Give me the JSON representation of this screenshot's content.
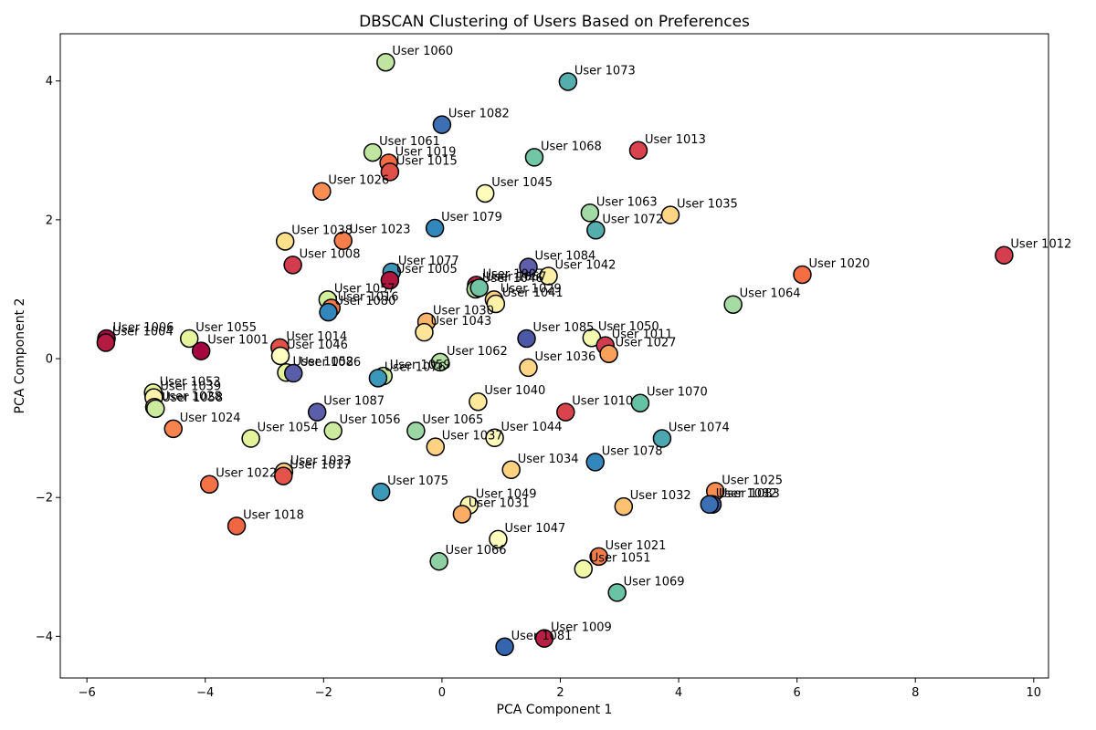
{
  "chart_data": {
    "type": "scatter",
    "title": "DBSCAN Clustering of Users Based on Preferences",
    "xlabel": "PCA Component 1",
    "ylabel": "PCA Component 2",
    "xlim": [
      -6.45,
      10.25
    ],
    "ylim": [
      -4.6,
      4.68
    ],
    "xticks": [
      -6,
      -4,
      -2,
      0,
      2,
      4,
      6,
      8,
      10
    ],
    "yticks": [
      -4,
      -2,
      0,
      2,
      4
    ],
    "grid": false,
    "marker_edge_color": "#000000",
    "points": [
      {
        "label": "User 1060",
        "x": -0.95,
        "y": 4.27,
        "color": "#bfe5a0"
      },
      {
        "label": "User 1073",
        "x": 2.13,
        "y": 3.99,
        "color": "#54aead"
      },
      {
        "label": "User 1082",
        "x": 0.0,
        "y": 3.37,
        "color": "#3d6fb4"
      },
      {
        "label": "User 1013",
        "x": 3.32,
        "y": 3.0,
        "color": "#d8434e"
      },
      {
        "label": "User 1061",
        "x": -1.17,
        "y": 2.97,
        "color": "#bfe5a0"
      },
      {
        "label": "User 1068",
        "x": 1.56,
        "y": 2.9,
        "color": "#71c6a5"
      },
      {
        "label": "User 1019",
        "x": -0.9,
        "y": 2.82,
        "color": "#f16c43"
      },
      {
        "label": "User 1015",
        "x": -0.88,
        "y": 2.69,
        "color": "#e0504a"
      },
      {
        "label": "User 1026",
        "x": -2.03,
        "y": 2.41,
        "color": "#f88e53"
      },
      {
        "label": "User 1045",
        "x": 0.73,
        "y": 2.38,
        "color": "#fdfcbb"
      },
      {
        "label": "User 1063",
        "x": 2.5,
        "y": 2.1,
        "color": "#a2d9a4"
      },
      {
        "label": "User 1035",
        "x": 3.86,
        "y": 2.07,
        "color": "#fdd585"
      },
      {
        "label": "User 1072",
        "x": 2.6,
        "y": 1.85,
        "color": "#54aead"
      },
      {
        "label": "User 1079",
        "x": -0.12,
        "y": 1.88,
        "color": "#3288bd"
      },
      {
        "label": "User 1038",
        "x": -2.65,
        "y": 1.69,
        "color": "#fee08b"
      },
      {
        "label": "User 1023",
        "x": -1.67,
        "y": 1.7,
        "color": "#f67e4b"
      },
      {
        "label": "User 1012",
        "x": 9.5,
        "y": 1.49,
        "color": "#d53e4f"
      },
      {
        "label": "User 1008",
        "x": -2.52,
        "y": 1.35,
        "color": "#d33c4e"
      },
      {
        "label": "User 1020",
        "x": 6.09,
        "y": 1.21,
        "color": "#f46d43"
      },
      {
        "label": "User 1084",
        "x": 1.46,
        "y": 1.32,
        "color": "#5e5fa8"
      },
      {
        "label": "User 1042",
        "x": 1.8,
        "y": 1.19,
        "color": "#fff0a5"
      },
      {
        "label": "User 1077",
        "x": -0.85,
        "y": 1.25,
        "color": "#3d95b8"
      },
      {
        "label": "User 1005",
        "x": -0.88,
        "y": 1.13,
        "color": "#b0173f"
      },
      {
        "label": "User 1007",
        "x": 0.58,
        "y": 1.06,
        "color": "#be2445"
      },
      {
        "label": "User 1046",
        "x": 0.57,
        "y": 1.0,
        "color": "#b6e1a0"
      },
      {
        "label": "User 1067",
        "x": 0.63,
        "y": 1.02,
        "color": "#70c4a4"
      },
      {
        "label": "User 1029",
        "x": 0.88,
        "y": 0.85,
        "color": "#fed181"
      },
      {
        "label": "User 1041",
        "x": 0.91,
        "y": 0.79,
        "color": "#fff1a8"
      },
      {
        "label": "User 1064",
        "x": 4.92,
        "y": 0.78,
        "color": "#a6dba4"
      },
      {
        "label": "User 1057",
        "x": -1.93,
        "y": 0.85,
        "color": "#d3ee9b"
      },
      {
        "label": "User 1016",
        "x": -1.87,
        "y": 0.73,
        "color": "#f2784a"
      },
      {
        "label": "User 1080",
        "x": -1.92,
        "y": 0.67,
        "color": "#3386bc"
      },
      {
        "label": "User 1030",
        "x": -0.26,
        "y": 0.53,
        "color": "#fbb469"
      },
      {
        "label": "User 1043",
        "x": -0.3,
        "y": 0.38,
        "color": "#fee59a"
      },
      {
        "label": "User 1006",
        "x": -5.67,
        "y": 0.29,
        "color": "#a30747"
      },
      {
        "label": "User 1004",
        "x": -5.68,
        "y": 0.23,
        "color": "#b51a42"
      },
      {
        "label": "User 1055",
        "x": -4.27,
        "y": 0.29,
        "color": "#e6f59d"
      },
      {
        "label": "User 1085",
        "x": 1.43,
        "y": 0.29,
        "color": "#4a58a5"
      },
      {
        "label": "User 1050",
        "x": 2.53,
        "y": 0.3,
        "color": "#f2fab0"
      },
      {
        "label": "User 1011",
        "x": 2.76,
        "y": 0.19,
        "color": "#d33c4e"
      },
      {
        "label": "User 1027",
        "x": 2.82,
        "y": 0.07,
        "color": "#fba05b"
      },
      {
        "label": "User 1001",
        "x": -4.07,
        "y": 0.11,
        "color": "#a5063f"
      },
      {
        "label": "User 1014",
        "x": -2.74,
        "y": 0.16,
        "color": "#e35049"
      },
      {
        "label": "User 1046",
        "x": -2.73,
        "y": 0.04,
        "color": "#fffdc0"
      },
      {
        "label": "User 1052",
        "x": -2.63,
        "y": -0.2,
        "color": "#e6f59d"
      },
      {
        "label": "User 1086",
        "x": -2.51,
        "y": -0.21,
        "color": "#5a5ea8"
      },
      {
        "label": "User 1059",
        "x": -0.99,
        "y": -0.25,
        "color": "#c5e9a0"
      },
      {
        "label": "User 1076",
        "x": -1.08,
        "y": -0.28,
        "color": "#3b97b9"
      },
      {
        "label": "User 1062",
        "x": -0.03,
        "y": -0.05,
        "color": "#b3e0a2"
      },
      {
        "label": "User 1036",
        "x": 1.46,
        "y": -0.13,
        "color": "#fdd585"
      },
      {
        "label": "User 1053",
        "x": -4.88,
        "y": -0.49,
        "color": "#e6f59d"
      },
      {
        "label": "User 1039",
        "x": -4.87,
        "y": -0.56,
        "color": "#fff3ac"
      },
      {
        "label": "User 1028",
        "x": -4.86,
        "y": -0.7,
        "color": "#fbb96b"
      },
      {
        "label": "User 1058",
        "x": -4.84,
        "y": -0.72,
        "color": "#cceb9d"
      },
      {
        "label": "User 1087",
        "x": -2.11,
        "y": -0.77,
        "color": "#5b5fa9"
      },
      {
        "label": "User 1040",
        "x": 0.61,
        "y": -0.62,
        "color": "#fee99c"
      },
      {
        "label": "User 1010",
        "x": 2.09,
        "y": -0.77,
        "color": "#d8434e"
      },
      {
        "label": "User 1070",
        "x": 3.35,
        "y": -0.64,
        "color": "#66c2a5"
      },
      {
        "label": "User 1024",
        "x": -4.54,
        "y": -1.01,
        "color": "#f7844e"
      },
      {
        "label": "User 1054",
        "x": -3.23,
        "y": -1.15,
        "color": "#e2f39b"
      },
      {
        "label": "User 1056",
        "x": -1.84,
        "y": -1.04,
        "color": "#cbea9d"
      },
      {
        "label": "User 1065",
        "x": -0.44,
        "y": -1.04,
        "color": "#9bd6a4"
      },
      {
        "label": "User 1044",
        "x": 0.89,
        "y": -1.14,
        "color": "#fffab9"
      },
      {
        "label": "User 1037",
        "x": -0.11,
        "y": -1.27,
        "color": "#fed282"
      },
      {
        "label": "User 1074",
        "x": 3.72,
        "y": -1.15,
        "color": "#4ca7b0"
      },
      {
        "label": "User 1078",
        "x": 2.59,
        "y": -1.49,
        "color": "#3288bd"
      },
      {
        "label": "User 1034",
        "x": 1.17,
        "y": -1.6,
        "color": "#fed181"
      },
      {
        "label": "User 1033",
        "x": -2.67,
        "y": -1.63,
        "color": "#fdd082"
      },
      {
        "label": "User 1017",
        "x": -2.68,
        "y": -1.69,
        "color": "#e4544b"
      },
      {
        "label": "User 1022",
        "x": -3.93,
        "y": -1.81,
        "color": "#f47245"
      },
      {
        "label": "User 1075",
        "x": -1.03,
        "y": -1.92,
        "color": "#3c9ab8"
      },
      {
        "label": "User 1025",
        "x": 4.62,
        "y": -1.91,
        "color": "#f88c51"
      },
      {
        "label": "User 1083",
        "x": 4.57,
        "y": -2.1,
        "color": "#3b5ba8"
      },
      {
        "label": "User 1082",
        "x": 4.52,
        "y": -2.1,
        "color": "#3d6fb4"
      },
      {
        "label": "User 1049",
        "x": 0.46,
        "y": -2.11,
        "color": "#fff7b2"
      },
      {
        "label": "User 1031",
        "x": 0.34,
        "y": -2.24,
        "color": "#fbad66"
      },
      {
        "label": "User 1032",
        "x": 3.07,
        "y": -2.13,
        "color": "#fdc171"
      },
      {
        "label": "User 1018",
        "x": -3.47,
        "y": -2.41,
        "color": "#f06642"
      },
      {
        "label": "User 1047",
        "x": 0.95,
        "y": -2.6,
        "color": "#ffffbe"
      },
      {
        "label": "User 1021",
        "x": 2.65,
        "y": -2.85,
        "color": "#f67d4a"
      },
      {
        "label": "User 1066",
        "x": -0.05,
        "y": -2.92,
        "color": "#8ed0a4"
      },
      {
        "label": "User 1051",
        "x": 2.39,
        "y": -3.03,
        "color": "#f1f9a9"
      },
      {
        "label": "User 1069",
        "x": 2.96,
        "y": -3.37,
        "color": "#6ac3a5"
      },
      {
        "label": "User 1009",
        "x": 1.73,
        "y": -4.03,
        "color": "#b91f43"
      },
      {
        "label": "User 1081",
        "x": 1.06,
        "y": -4.15,
        "color": "#3465ad"
      }
    ]
  }
}
